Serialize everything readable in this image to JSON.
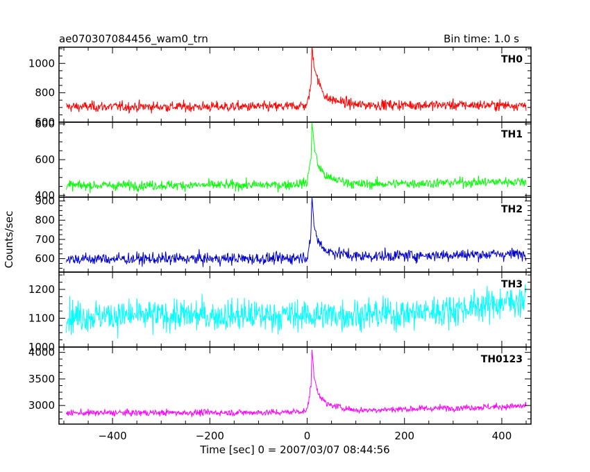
{
  "header": {
    "title": "ae070307084456_wam0_trn",
    "bin_time": "Bin time: 1.0 s"
  },
  "chart_data": {
    "type": "line",
    "xlabel": "Time [sec] 0 = 2007/03/07 08:44:56",
    "ylabel": "Counts/sec",
    "xlim": [
      -510,
      460
    ],
    "x_ticks": [
      -400,
      -200,
      0,
      200,
      400
    ],
    "x_tick_labels": [
      "−400",
      "−200",
      "0",
      "200",
      "400"
    ],
    "grid": false,
    "panels": [
      {
        "name": "TH0",
        "color": "#ff0000",
        "ylim": [
          600,
          1110
        ],
        "y_ticks": [
          600,
          800,
          1000
        ],
        "series": {
          "x_start": -495,
          "x_end": 450,
          "baseline": 705,
          "noise": 32,
          "peak_x": 10,
          "peak_value": 1110,
          "anchors": [
            [
              -495,
              705
            ],
            [
              -50,
              705
            ],
            [
              0,
              715
            ],
            [
              8,
              860
            ],
            [
              10,
              1110
            ],
            [
              14,
              1000
            ],
            [
              22,
              880
            ],
            [
              40,
              760
            ],
            [
              100,
              718
            ],
            [
              450,
              715
            ]
          ]
        }
      },
      {
        "name": "TH1",
        "color": "#00ff00",
        "ylim": [
          390,
          810
        ],
        "y_ticks": [
          400,
          600,
          800
        ],
        "series": {
          "x_start": -495,
          "x_end": 450,
          "baseline": 455,
          "noise": 25,
          "peak_x": 10,
          "peak_value": 810,
          "anchors": [
            [
              -495,
              455
            ],
            [
              -50,
              458
            ],
            [
              0,
              470
            ],
            [
              8,
              620
            ],
            [
              10,
              810
            ],
            [
              14,
              690
            ],
            [
              22,
              570
            ],
            [
              40,
              500
            ],
            [
              100,
              462
            ],
            [
              450,
              478
            ]
          ]
        }
      },
      {
        "name": "TH2",
        "color": "#0000cc",
        "ylim": [
          530,
          920
        ],
        "y_ticks": [
          600,
          700,
          800,
          900
        ],
        "series": {
          "x_start": -495,
          "x_end": 450,
          "baseline": 600,
          "noise": 28,
          "peak_x": 10,
          "peak_value": 920,
          "anchors": [
            [
              -495,
              598
            ],
            [
              -50,
              600
            ],
            [
              0,
              610
            ],
            [
              8,
              720
            ],
            [
              10,
              920
            ],
            [
              14,
              780
            ],
            [
              22,
              690
            ],
            [
              40,
              640
            ],
            [
              100,
              612
            ],
            [
              450,
              625
            ]
          ]
        }
      },
      {
        "name": "TH3",
        "color": "#00ffff",
        "ylim": [
          1000,
          1260
        ],
        "y_ticks": [
          1000,
          1100,
          1200
        ],
        "series": {
          "x_start": -495,
          "x_end": 450,
          "baseline": 1110,
          "noise": 50,
          "anchors": [
            [
              -495,
              1108
            ],
            [
              0,
              1110
            ],
            [
              200,
              1115
            ],
            [
              300,
              1130
            ],
            [
              450,
              1165
            ]
          ]
        }
      },
      {
        "name": "TH0123",
        "color": "#ff00ff",
        "ylim": [
          2650,
          4100
        ],
        "y_ticks": [
          3000,
          3500,
          4000
        ],
        "series": {
          "x_start": -495,
          "x_end": 450,
          "baseline": 2860,
          "noise": 55,
          "peak_x": 10,
          "peak_value": 4050,
          "anchors": [
            [
              -495,
              2860
            ],
            [
              -50,
              2870
            ],
            [
              0,
              2900
            ],
            [
              8,
              3400
            ],
            [
              10,
              4050
            ],
            [
              14,
              3550
            ],
            [
              22,
              3250
            ],
            [
              40,
              3020
            ],
            [
              100,
              2910
            ],
            [
              450,
              2990
            ]
          ]
        }
      }
    ]
  }
}
